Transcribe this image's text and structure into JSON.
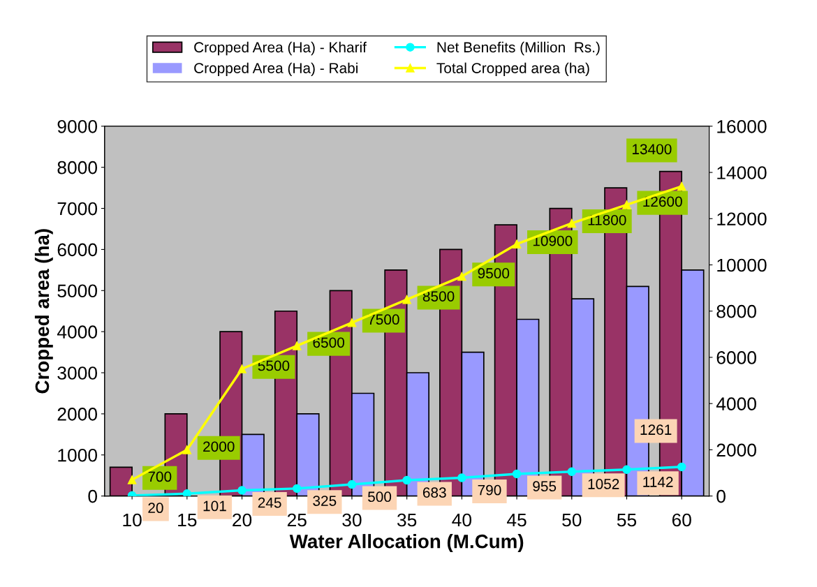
{
  "chart_data": {
    "type": "bar",
    "xlabel": "Water Allocation (M.Cum)",
    "ylabel": "Cropped area (ha)",
    "categories": [
      "10",
      "15",
      "20",
      "25",
      "30",
      "35",
      "40",
      "45",
      "50",
      "55",
      "60"
    ],
    "series": [
      {
        "name": "Cropped Area (Ha) - Kharif",
        "type": "bar",
        "color": "#993366",
        "values": [
          700,
          2000,
          4000,
          4500,
          5000,
          5500,
          6000,
          6600,
          7000,
          7500,
          7900
        ]
      },
      {
        "name": "Cropped Area (Ha) - Rabi",
        "type": "bar",
        "color": "#9999ff",
        "values": [
          null,
          null,
          1500,
          2000,
          2500,
          3000,
          3500,
          4300,
          4800,
          5100,
          5500
        ]
      },
      {
        "name": "Net Benefits (Million  Rs.)",
        "type": "line",
        "axis": "y2",
        "marker": "circle",
        "color": "#00ffff",
        "data_labels": true,
        "values": [
          20,
          101,
          245,
          325,
          500,
          683,
          790,
          955,
          1052,
          1142,
          1261
        ]
      },
      {
        "name": "Total Cropped area (ha)",
        "type": "line",
        "axis": "y2",
        "marker": "triangle",
        "color": "#ffff00",
        "data_labels": true,
        "values": [
          700,
          2000,
          5500,
          6500,
          7500,
          8500,
          9500,
          10900,
          11800,
          12600,
          13400
        ]
      }
    ],
    "ylim": [
      0,
      9000
    ],
    "yticks": [
      0,
      1000,
      2000,
      3000,
      4000,
      5000,
      6000,
      7000,
      8000,
      9000
    ],
    "y2lim": [
      0,
      16000
    ],
    "y2ticks": [
      0,
      2000,
      4000,
      6000,
      8000,
      10000,
      12000,
      14000,
      16000
    ],
    "grid": false,
    "legend": "top"
  }
}
